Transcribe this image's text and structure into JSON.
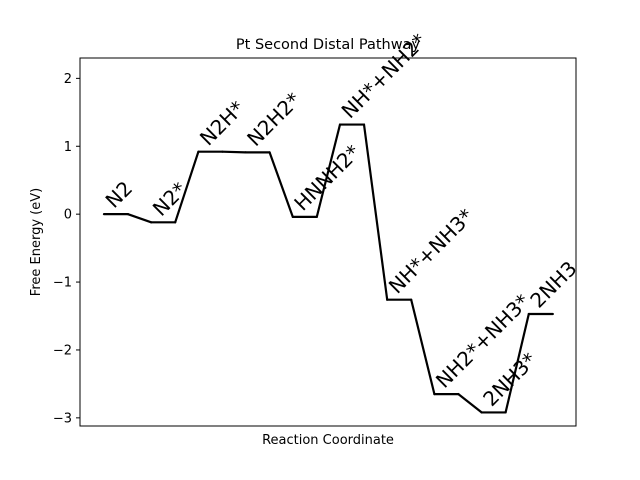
{
  "chart_data": {
    "type": "line",
    "title": "Pt Second Distal Pathway",
    "xlabel": "Reaction Coordinate",
    "ylabel": "Free Energy (eV)",
    "ylim": [
      -3.12,
      2.3
    ],
    "yticks": [
      2,
      1,
      0,
      -1,
      -2,
      -3
    ],
    "ytick_labels": [
      "2",
      "1",
      "0",
      "−1",
      "−2",
      "−3"
    ],
    "grid": false,
    "line_color": "#000000",
    "steps": [
      {
        "label": "N2",
        "energy": 0.0
      },
      {
        "label": "N2*",
        "energy": -0.12
      },
      {
        "label": "N2H*",
        "energy": 0.92
      },
      {
        "label": "N2H2*",
        "energy": 0.91
      },
      {
        "label": "HNNH2*",
        "energy": -0.04
      },
      {
        "label": "NH*+NH2*",
        "energy": 1.32
      },
      {
        "label": "NH*+NH3*",
        "energy": -1.26
      },
      {
        "label": "NH2*+NH3*",
        "energy": -2.65
      },
      {
        "label": "2NH3*",
        "energy": -2.92
      },
      {
        "label": "2NH3",
        "energy": -1.47
      }
    ]
  }
}
